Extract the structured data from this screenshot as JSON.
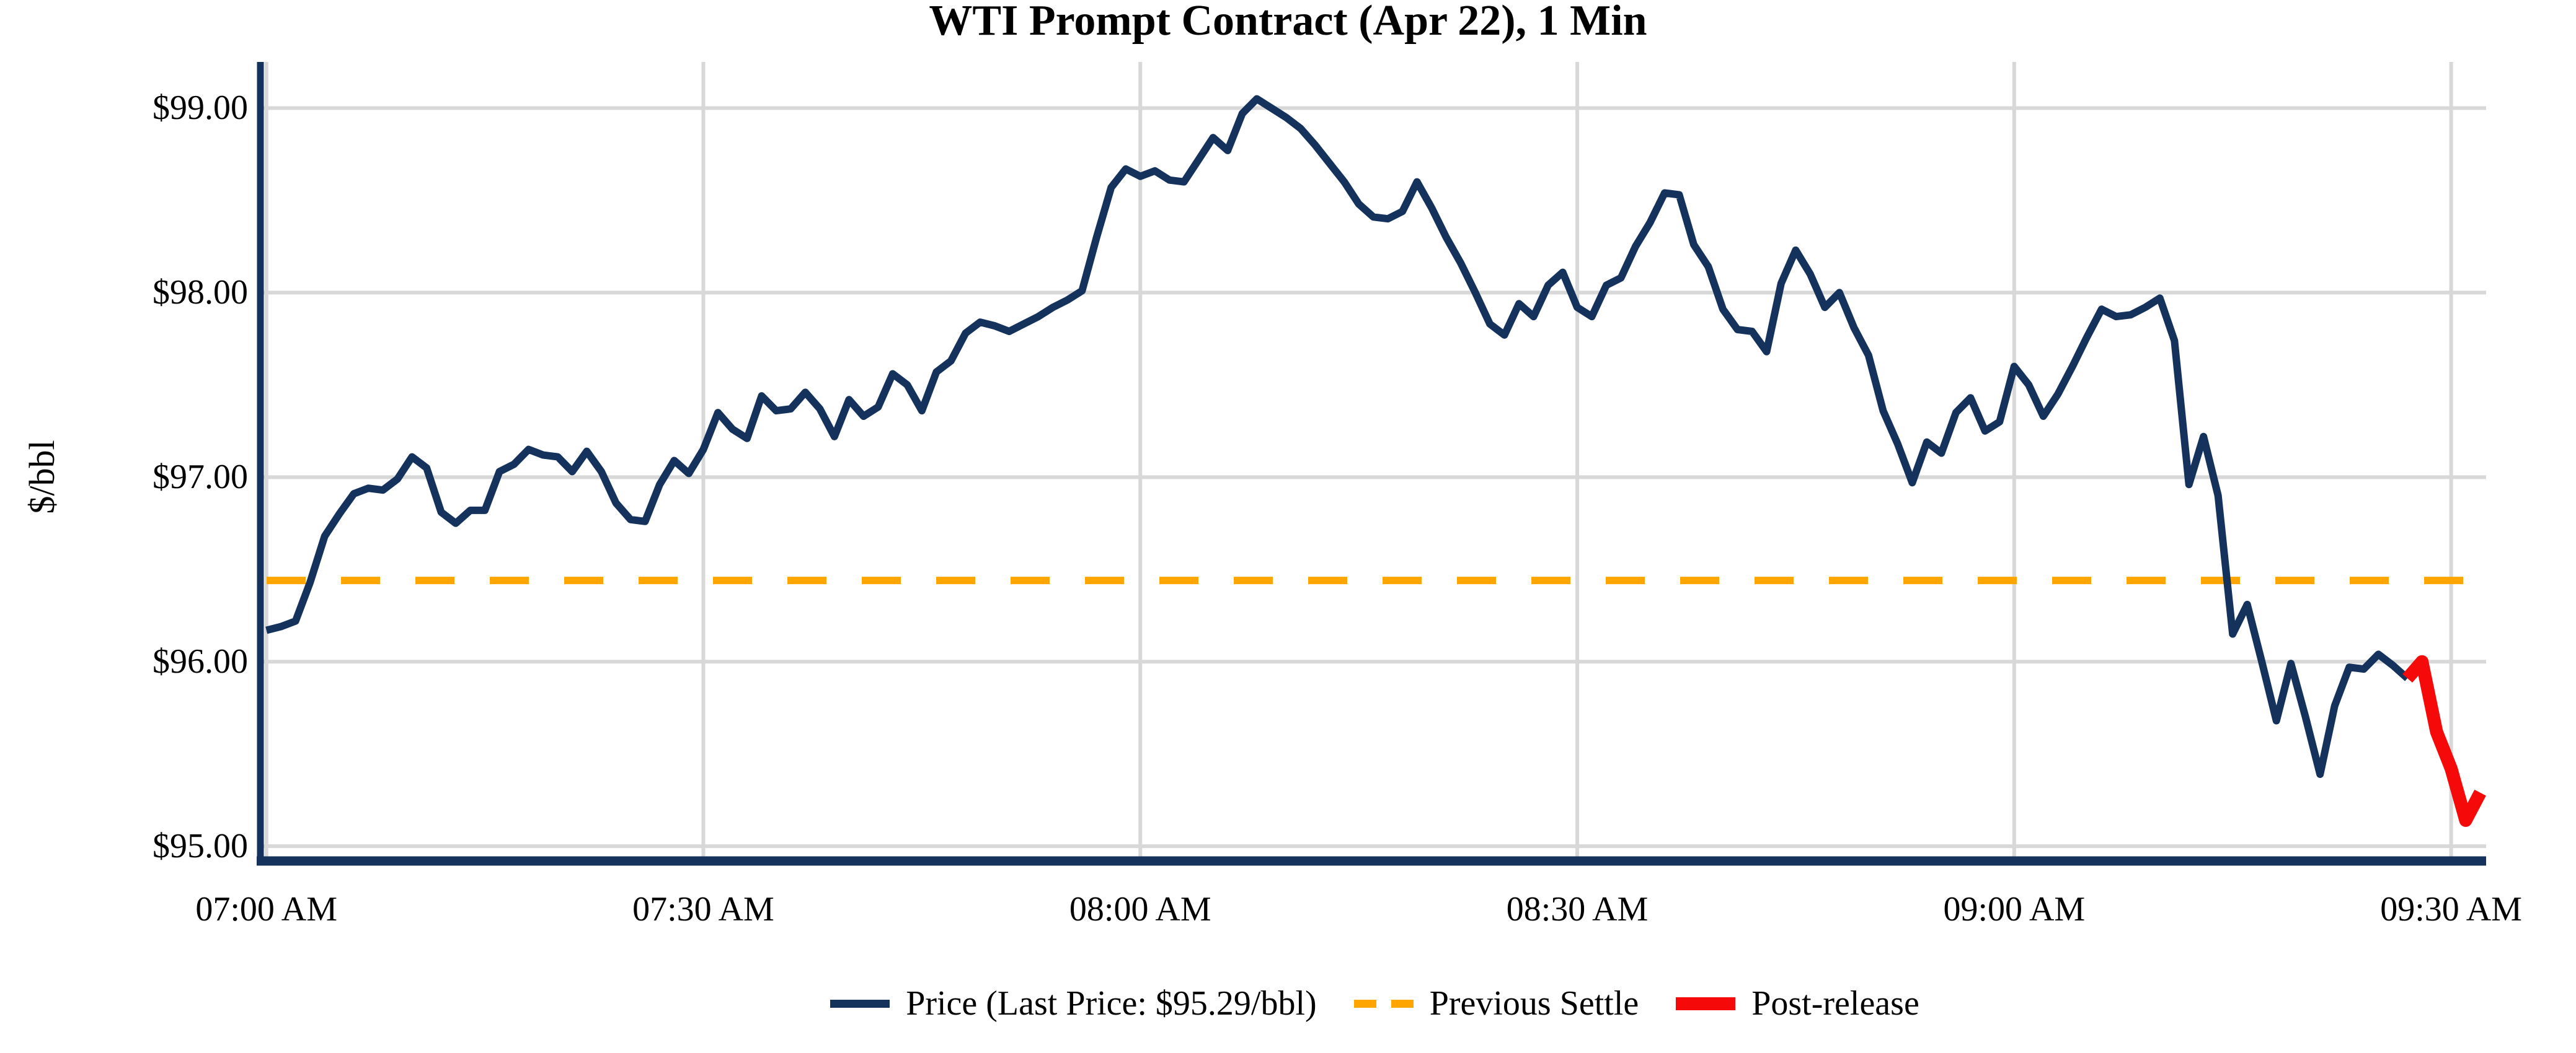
{
  "title": "WTI Prompt Contract (Apr 22), 1 Min",
  "chart_data": {
    "type": "line",
    "title": "WTI Prompt Contract (Apr 22), 1 Min",
    "xlabel": "",
    "ylabel": "$/bbl",
    "grid": true,
    "legend_position": "bottom-center",
    "x_start_time": "07:00 AM",
    "x_interval_minutes": 1,
    "x_tick_minutes": [
      0,
      30,
      60,
      90,
      120,
      150
    ],
    "x_tick_labels": [
      "07:00 AM",
      "07:30 AM",
      "08:00 AM",
      "08:30 AM",
      "09:00 AM",
      "09:30 AM"
    ],
    "xlim_minutes": [
      -0.2,
      152.4
    ],
    "y_ticks": [
      95,
      96,
      97,
      98,
      99
    ],
    "y_tick_labels": [
      "$95.00",
      "$96.00",
      "$97.00",
      "$98.00",
      "$99.00"
    ],
    "ylim": [
      94.92,
      99.25
    ],
    "previous_settle": 96.44,
    "last_price": 95.29,
    "post_release_start_index": 147,
    "colors": {
      "price_line": "#14325c",
      "previous_settle_line": "#FFA500",
      "post_release_line": "#f60909",
      "gridline": "#d8d8d8"
    },
    "prices_1min": [
      96.17,
      96.19,
      96.22,
      96.43,
      96.68,
      96.8,
      96.91,
      96.94,
      96.93,
      96.99,
      97.11,
      97.05,
      96.81,
      96.75,
      96.82,
      96.82,
      97.03,
      97.07,
      97.15,
      97.12,
      97.11,
      97.03,
      97.14,
      97.03,
      96.86,
      96.77,
      96.76,
      96.96,
      97.09,
      97.02,
      97.15,
      97.35,
      97.26,
      97.21,
      97.44,
      97.36,
      97.37,
      97.46,
      97.37,
      97.22,
      97.42,
      97.33,
      97.38,
      97.56,
      97.5,
      97.36,
      97.57,
      97.63,
      97.78,
      97.84,
      97.82,
      97.79,
      97.83,
      97.87,
      97.92,
      97.96,
      98.01,
      98.3,
      98.57,
      98.67,
      98.63,
      98.66,
      98.61,
      98.6,
      98.72,
      98.84,
      98.77,
      98.97,
      99.05,
      99.0,
      98.95,
      98.89,
      98.8,
      98.7,
      98.6,
      98.48,
      98.41,
      98.4,
      98.44,
      98.6,
      98.46,
      98.3,
      98.16,
      98.0,
      97.83,
      97.77,
      97.94,
      97.87,
      98.04,
      98.11,
      97.92,
      97.87,
      98.04,
      98.08,
      98.25,
      98.38,
      98.54,
      98.53,
      98.26,
      98.14,
      97.91,
      97.8,
      97.79,
      97.68,
      98.05,
      98.23,
      98.1,
      97.92,
      98.0,
      97.81,
      97.66,
      97.36,
      97.18,
      96.97,
      97.19,
      97.13,
      97.35,
      97.43,
      97.25,
      97.3,
      97.6,
      97.5,
      97.33,
      97.45,
      97.6,
      97.76,
      97.91,
      97.87,
      97.88,
      97.92,
      97.97,
      97.74,
      96.96,
      97.22,
      96.9,
      96.15,
      96.31,
      96.0,
      95.68,
      95.99,
      95.7,
      95.39,
      95.76,
      95.97,
      95.96,
      96.04,
      95.98,
      95.91,
      96.0,
      95.62,
      95.42,
      95.14,
      95.29
    ]
  },
  "legend": {
    "items": [
      {
        "label": "Price (Last Price: $95.29/bbl)",
        "swatch": "navy-line",
        "color": "#14325c"
      },
      {
        "label": "Previous Settle",
        "swatch": "orange-dashed-line",
        "color": "#FFA500"
      },
      {
        "label": "Post-release",
        "swatch": "red-thick-line",
        "color": "#f60909"
      }
    ]
  }
}
